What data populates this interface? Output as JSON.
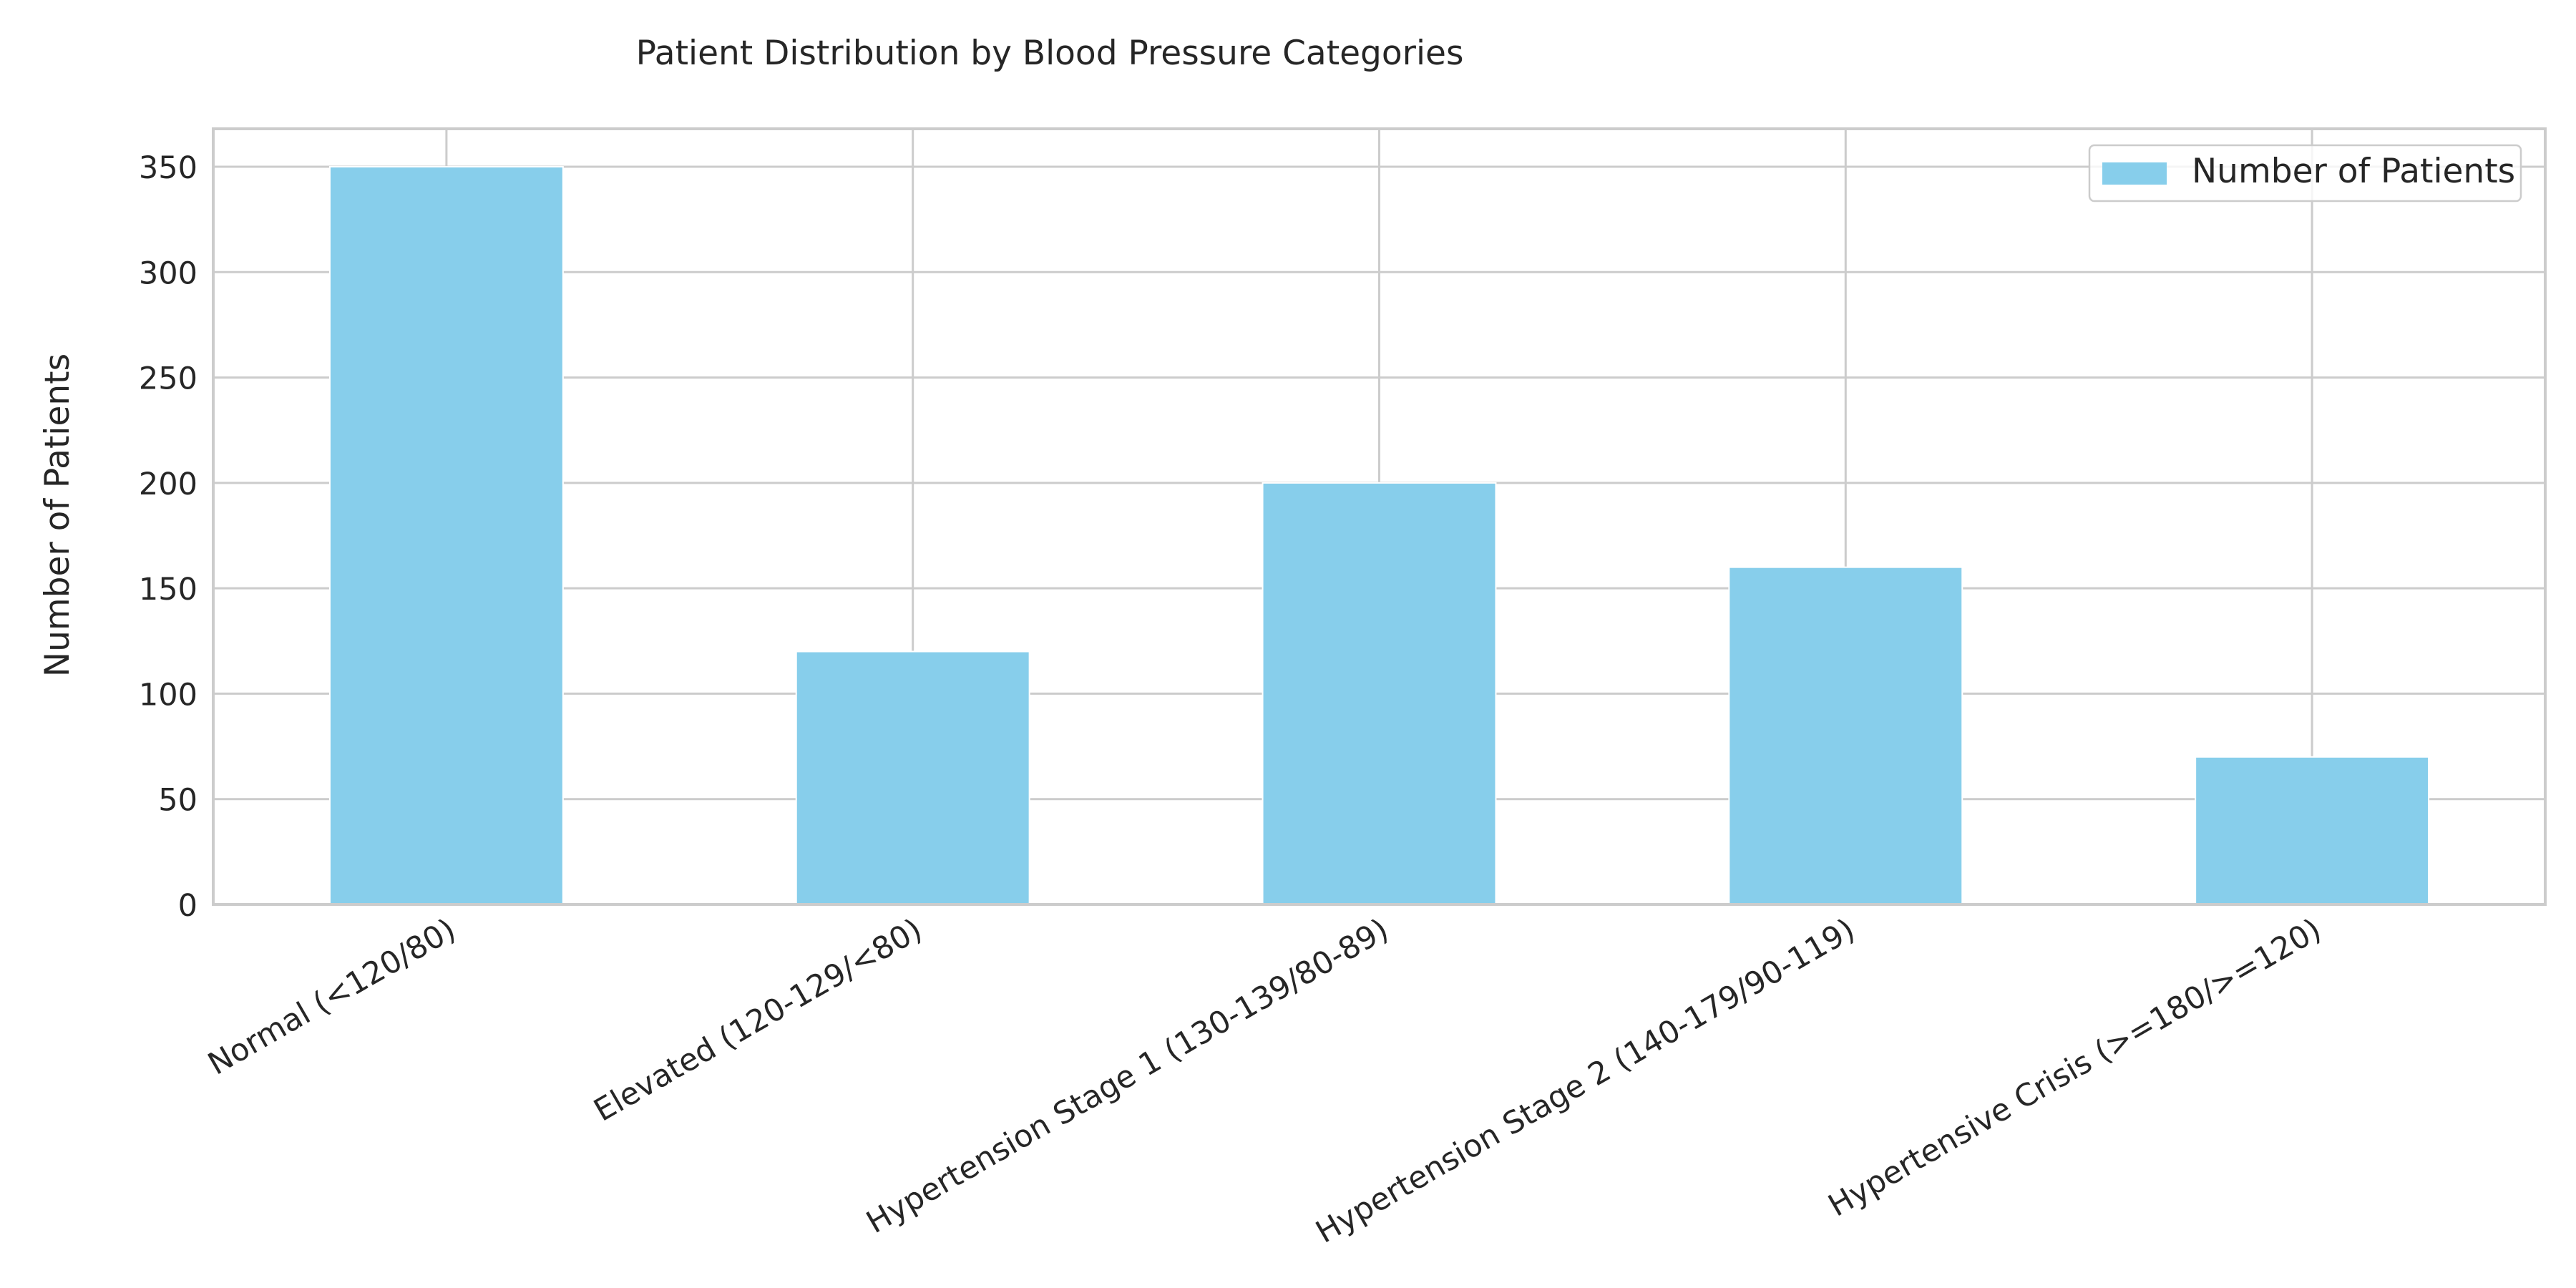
{
  "chart_data": {
    "type": "bar",
    "title": "Patient Distribution by Blood Pressure Categories",
    "xlabel": "",
    "ylabel": "Number of Patients",
    "categories": [
      "Normal (<120/80)",
      "Elevated (120-129/<80)",
      "Hypertension Stage 1 (130-139/80-89)",
      "Hypertension Stage 2 (140-179/90-119)",
      "Hypertensive Crisis (>=180/>=120)"
    ],
    "series": [
      {
        "name": "Number of Patients",
        "values": [
          350,
          120,
          200,
          160,
          70
        ],
        "color": "#87CEEB"
      }
    ],
    "ylim": [
      0,
      368
    ],
    "yticks": [
      0,
      50,
      100,
      150,
      200,
      250,
      300,
      350
    ],
    "grid": true,
    "legend_position": "top-right"
  }
}
